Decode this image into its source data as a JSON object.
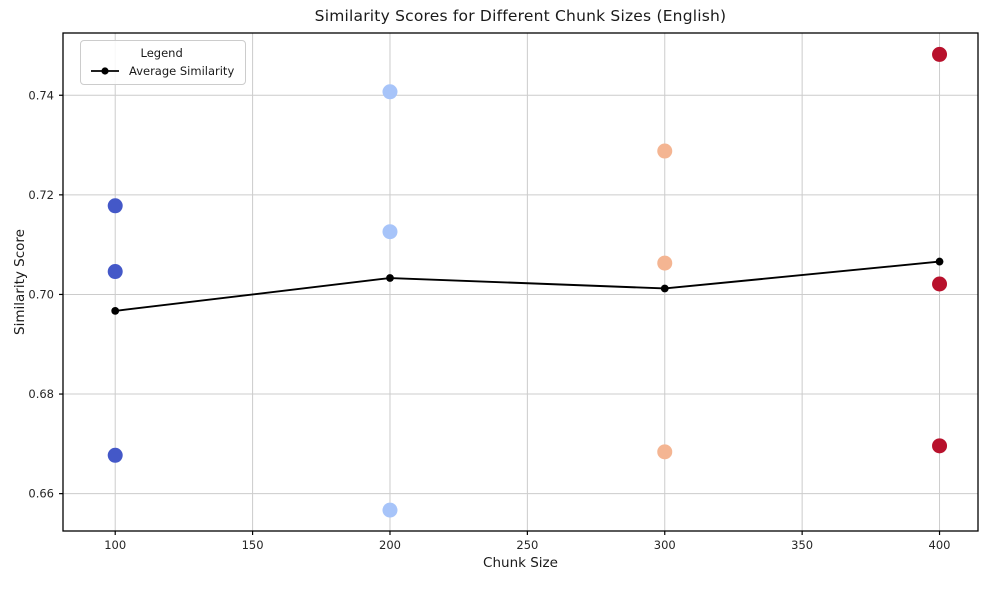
{
  "chart_data": {
    "type": "scatter",
    "title": "Similarity Scores for Different Chunk Sizes (English)",
    "xlabel": "Chunk Size",
    "ylabel": "Similarity Score",
    "xlim": [
      81,
      414
    ],
    "ylim": [
      0.6525,
      0.7525
    ],
    "x_ticks": [
      100,
      150,
      200,
      250,
      300,
      350,
      400
    ],
    "x_tick_labels": [
      "100",
      "150",
      "200",
      "250",
      "300",
      "350",
      "400"
    ],
    "y_ticks": [
      0.66,
      0.68,
      0.7,
      0.72,
      0.74
    ],
    "y_tick_labels": [
      "0.66",
      "0.68",
      "0.70",
      "0.72",
      "0.74"
    ],
    "grid": true,
    "legend": {
      "title": "Legend",
      "position": "upper-left",
      "entries": [
        {
          "label": "Average Similarity",
          "color": "#000000",
          "marker": "line-dot"
        }
      ]
    },
    "scatter_groups": [
      {
        "chunk_size": 100,
        "color": "#4458c8",
        "values": [
          0.7178,
          0.7046,
          0.6677
        ]
      },
      {
        "chunk_size": 200,
        "color": "#a7c4f9",
        "values": [
          0.7407,
          0.7126,
          0.6567
        ]
      },
      {
        "chunk_size": 300,
        "color": "#f4b592",
        "values": [
          0.7288,
          0.7063,
          0.6684
        ]
      },
      {
        "chunk_size": 400,
        "color": "#b8112c",
        "values": [
          0.7482,
          0.7021,
          0.6696
        ]
      }
    ],
    "average_series": {
      "name": "Average Similarity",
      "color": "#000000",
      "x": [
        100,
        200,
        300,
        400
      ],
      "y": [
        0.6967,
        0.7033,
        0.7012,
        0.7066
      ]
    }
  },
  "style": {
    "grid_color": "#cccccc",
    "spine_color": "#000000",
    "tick_label_color": "#262626",
    "background": "#ffffff"
  }
}
